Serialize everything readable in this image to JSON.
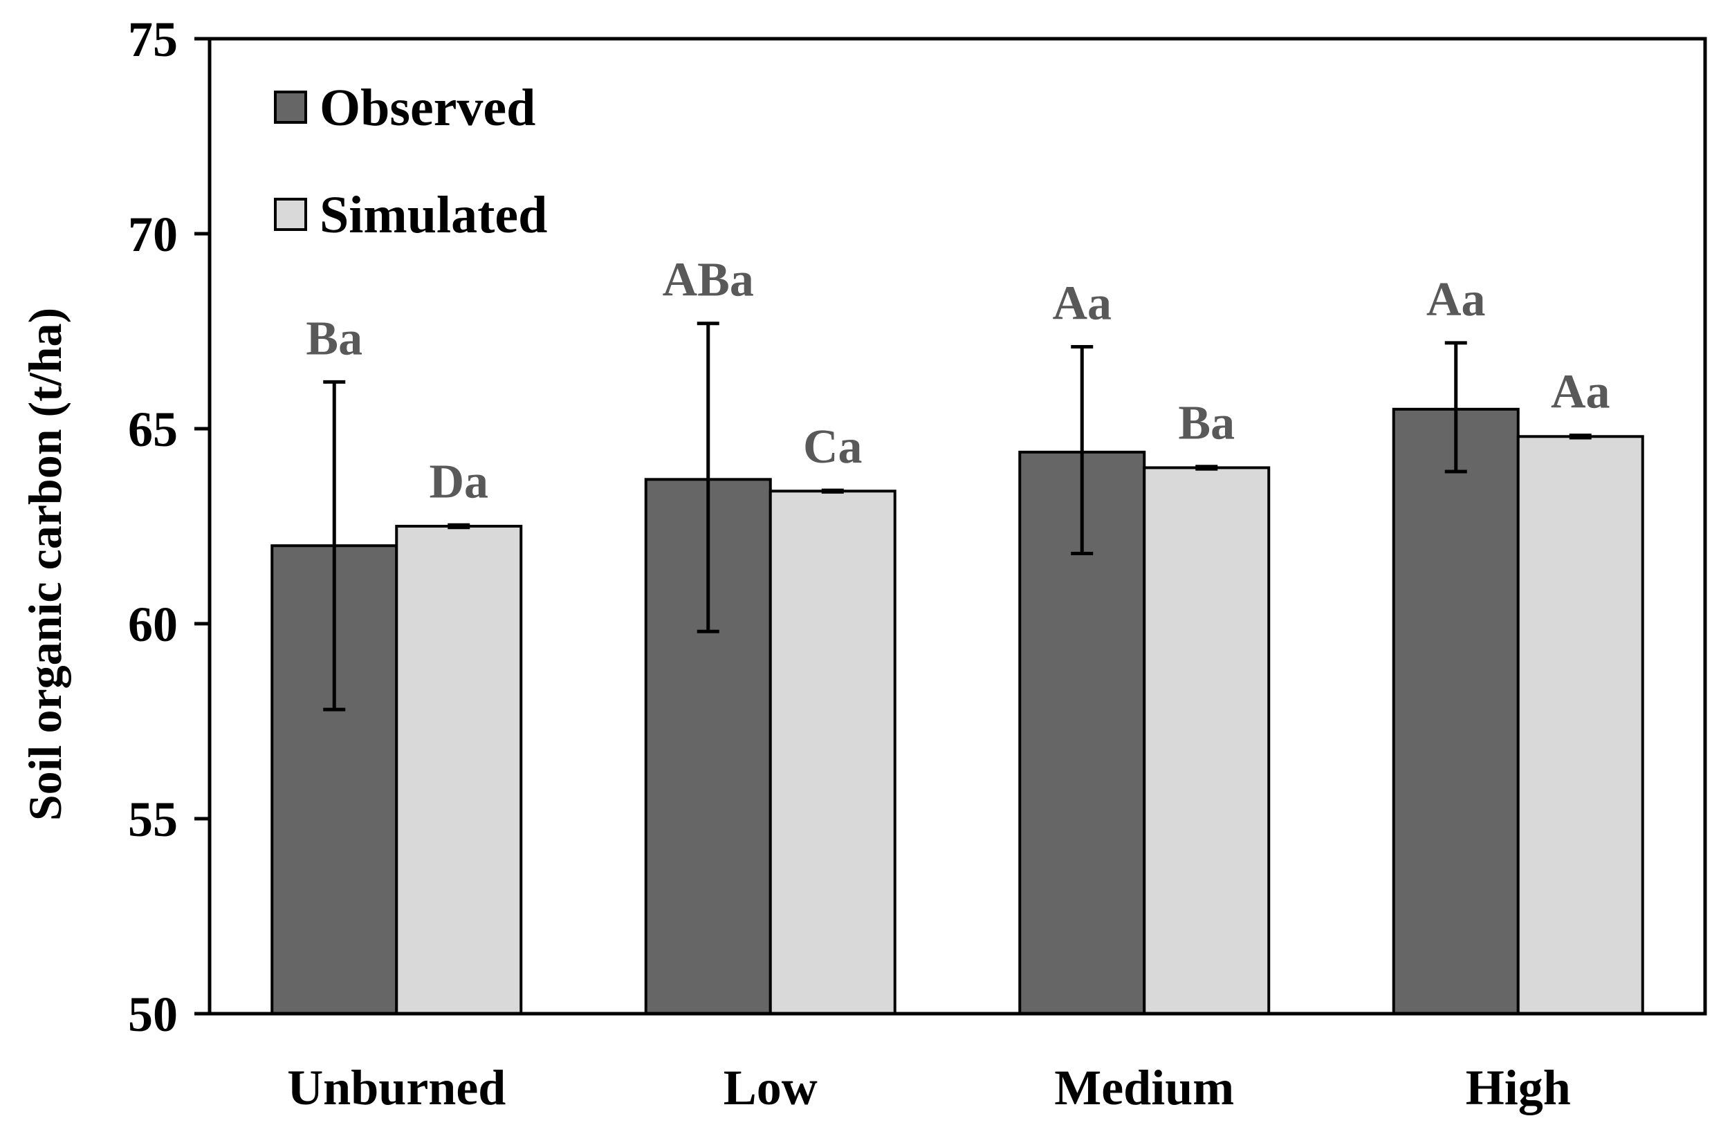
{
  "chart_data": {
    "type": "bar",
    "title": "",
    "xlabel": "",
    "ylabel": "Soil organic carbon (t/ha)",
    "ylim": [
      50,
      75
    ],
    "yticks": [
      50,
      55,
      60,
      65,
      70,
      75
    ],
    "categories": [
      "Unburned",
      "Low",
      "Medium",
      "High"
    ],
    "legend_position": "top-left",
    "series": [
      {
        "name": "Observed",
        "color": "#666666",
        "values": [
          62.0,
          63.7,
          64.4,
          65.5
        ],
        "error_low": [
          57.8,
          59.8,
          61.8,
          63.9
        ],
        "error_high": [
          66.2,
          67.7,
          67.1,
          67.2
        ],
        "labels": [
          "Ba",
          "ABa",
          "Aa",
          "Aa"
        ]
      },
      {
        "name": "Simulated",
        "color": "#d9d9d9",
        "values": [
          62.5,
          63.4,
          64.0,
          64.8
        ],
        "error_low": [
          62.47,
          63.38,
          63.97,
          64.77
        ],
        "error_high": [
          62.53,
          63.42,
          64.03,
          64.83
        ],
        "labels": [
          "Da",
          "Ca",
          "Ba",
          "Aa"
        ]
      }
    ]
  }
}
